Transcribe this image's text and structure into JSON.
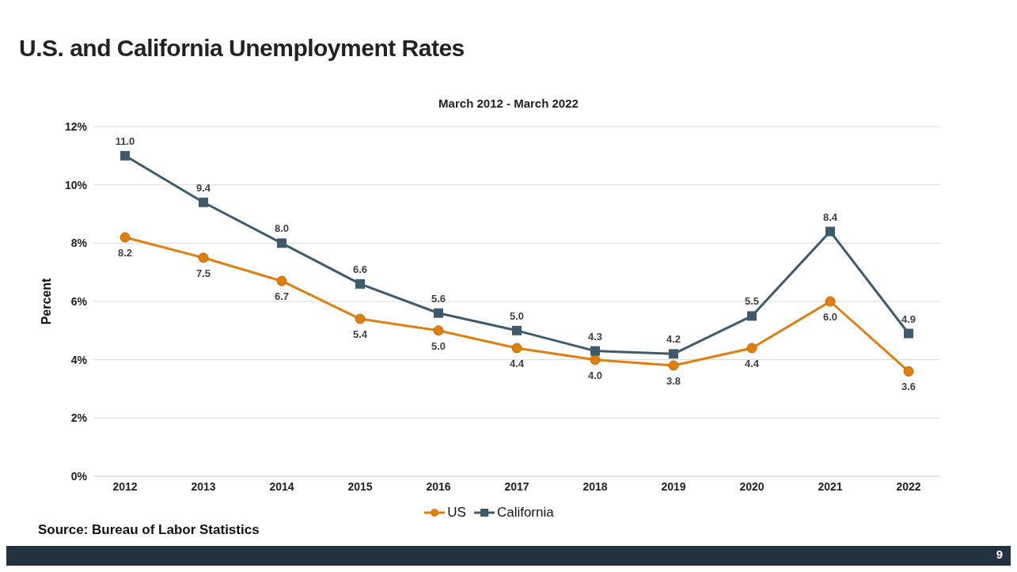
{
  "chart_data": {
    "type": "line",
    "title": "U.S. and California Unemployment Rates",
    "subtitle": "March 2012 - March 2022",
    "ylabel": "Percent",
    "categories": [
      "2012",
      "2013",
      "2014",
      "2015",
      "2016",
      "2017",
      "2018",
      "2019",
      "2020",
      "2021",
      "2022"
    ],
    "series": [
      {
        "name": "US",
        "color": "#df7f10",
        "marker": "circle",
        "values": [
          8.2,
          7.5,
          6.7,
          5.4,
          5.0,
          4.4,
          4.0,
          3.8,
          4.4,
          6.0,
          3.6
        ],
        "value_labels": [
          "8.2",
          "7.5",
          "6.7",
          "5.4",
          "5.0",
          "4.4",
          "4.0",
          "3.8",
          "4.4",
          "6.0",
          "3.6"
        ]
      },
      {
        "name": "California",
        "color": "#3e5a6d",
        "marker": "square",
        "values": [
          11.0,
          9.4,
          8.0,
          6.6,
          5.6,
          5.0,
          4.3,
          4.2,
          5.5,
          8.4,
          4.9
        ],
        "value_labels": [
          "11.0",
          "9.4",
          "8.0",
          "6.6",
          "5.6",
          "5.0",
          "4.3",
          "4.2",
          "5.5",
          "8.4",
          "4.9"
        ]
      }
    ],
    "ylim": [
      0,
      12
    ],
    "yticks": [
      {
        "value": 0,
        "label": "0%"
      },
      {
        "value": 2,
        "label": "2%"
      },
      {
        "value": 4,
        "label": "4%"
      },
      {
        "value": 6,
        "label": "6%"
      },
      {
        "value": 8,
        "label": "8%"
      },
      {
        "value": 10,
        "label": "10%"
      },
      {
        "value": 12,
        "label": "12%"
      }
    ],
    "grid": "y",
    "legend": "bottom",
    "annotations": [
      "Source: Bureau of Labor Statistics",
      "9"
    ]
  }
}
